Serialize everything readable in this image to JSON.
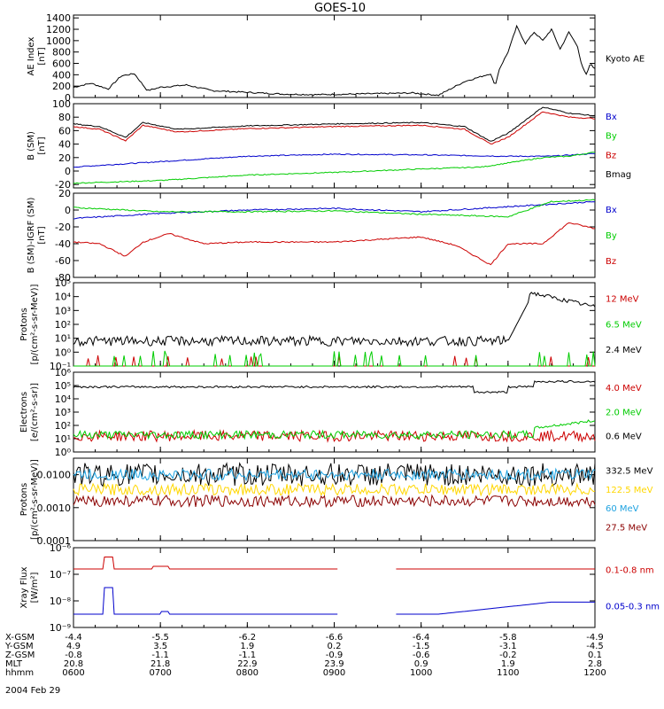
{
  "title": "GOES-10",
  "chart_data": [
    {
      "type": "line",
      "panel": "ae",
      "ylabel": [
        "AE Index",
        "[nT]"
      ],
      "yticks": [
        "0",
        "200",
        "400",
        "600",
        "800",
        "1000",
        "1200",
        "1400"
      ],
      "ylim": [
        0,
        1450
      ],
      "series": [
        {
          "name": "Kyoto AE",
          "color": "#000000",
          "x": [
            0,
            0.2,
            0.4,
            0.55,
            0.7,
            0.85,
            1.0,
            1.3,
            1.6,
            2.0,
            2.4,
            2.8,
            3.2,
            3.6,
            3.9,
            4.2,
            4.5,
            4.8,
            4.85,
            4.9,
            5.0,
            5.1,
            5.2,
            5.3,
            5.4,
            5.5,
            5.6,
            5.7,
            5.8,
            5.85,
            5.9,
            5.95,
            6.0
          ],
          "y": [
            180,
            250,
            150,
            380,
            420,
            120,
            180,
            220,
            120,
            90,
            60,
            50,
            60,
            70,
            80,
            40,
            280,
            420,
            200,
            500,
            800,
            1250,
            950,
            1150,
            1000,
            1200,
            850,
            1150,
            900,
            550,
            400,
            600,
            500
          ]
        }
      ]
    },
    {
      "type": "line",
      "panel": "b-gsm",
      "ylabel": [
        "B (SM)",
        "[nT]"
      ],
      "yticks": [
        "-20",
        "0",
        "20",
        "40",
        "60",
        "80",
        "100"
      ],
      "ylim": [
        -25,
        100
      ],
      "series": [
        {
          "name": "Bx",
          "color": "#0000cc",
          "x": [
            0,
            1,
            2,
            3,
            4,
            5,
            5.5,
            6
          ],
          "y": [
            6,
            14,
            22,
            25,
            24,
            22,
            22,
            26
          ]
        },
        {
          "name": "By",
          "color": "#00cc00",
          "x": [
            0,
            1,
            2,
            3,
            4,
            4.7,
            5,
            5.4,
            5.7,
            6
          ],
          "y": [
            -18,
            -14,
            -6,
            -2,
            3,
            6,
            12,
            20,
            22,
            28
          ]
        },
        {
          "name": "Bz",
          "color": "#cc0000",
          "x": [
            0,
            0.3,
            0.6,
            0.8,
            1.2,
            2,
            3,
            4,
            4.5,
            4.8,
            5,
            5.4,
            5.7,
            6
          ],
          "y": [
            66,
            62,
            45,
            68,
            58,
            63,
            66,
            68,
            62,
            40,
            50,
            88,
            80,
            78
          ]
        },
        {
          "name": "Bmag",
          "color": "#000000",
          "x": [
            0,
            0.3,
            0.6,
            0.8,
            1.2,
            2,
            3,
            4,
            4.5,
            4.8,
            5,
            5.4,
            5.7,
            6
          ],
          "y": [
            70,
            66,
            50,
            72,
            62,
            67,
            70,
            72,
            66,
            44,
            56,
            95,
            86,
            82
          ]
        }
      ]
    },
    {
      "type": "line",
      "panel": "b-igrf",
      "ylabel": [
        "B (SM)-IGRF (SM)",
        "[nT]"
      ],
      "yticks": [
        "-80",
        "-60",
        "-40",
        "-20",
        "0",
        "20"
      ],
      "ylim": [
        -80,
        20
      ],
      "series": [
        {
          "name": "Bx",
          "color": "#0000cc",
          "x": [
            0,
            1,
            2,
            3,
            4,
            5,
            6
          ],
          "y": [
            -10,
            -4,
            0,
            2,
            -2,
            4,
            10
          ]
        },
        {
          "name": "By",
          "color": "#00cc00",
          "x": [
            0,
            1,
            2,
            3,
            4,
            5,
            5.5,
            6
          ],
          "y": [
            3,
            -2,
            -2,
            -1,
            -5,
            -8,
            10,
            12
          ]
        },
        {
          "name": "Bz",
          "color": "#cc0000",
          "x": [
            0,
            0.3,
            0.6,
            0.8,
            1.1,
            1.5,
            2,
            3,
            4,
            4.4,
            4.8,
            5,
            5.4,
            5.7,
            6
          ],
          "y": [
            -38,
            -40,
            -55,
            -38,
            -28,
            -40,
            -38,
            -38,
            -32,
            -42,
            -65,
            -40,
            -40,
            -15,
            -22
          ]
        }
      ]
    },
    {
      "type": "line",
      "panel": "protons-epead",
      "ylabel": [
        "Protons",
        "[p/(cm²-s-sr-MeV)]"
      ],
      "yticks": [
        "10⁻¹",
        "10⁰",
        "10¹",
        "10²",
        "10³",
        "10⁴",
        "10⁵"
      ],
      "ylim_log10": [
        -1,
        5
      ],
      "series": [
        {
          "name": "12 MeV",
          "color": "#cc0000",
          "x": [],
          "y": []
        },
        {
          "name": "6.5 MeV",
          "color": "#00cc00",
          "x": [],
          "y": []
        },
        {
          "name": "2.4 MeV",
          "color": "#000000",
          "x": [],
          "y": []
        }
      ]
    },
    {
      "type": "line",
      "panel": "electrons",
      "ylabel": [
        "Electrons",
        "[e/(cm²-s-sr)]"
      ],
      "yticks": [
        "10⁰",
        "10¹",
        "10²",
        "10³",
        "10⁴",
        "10⁵",
        "10⁶"
      ],
      "ylim_log10": [
        0,
        6
      ],
      "series": [
        {
          "name": "4.0 MeV",
          "color": "#cc0000",
          "x": [],
          "y": []
        },
        {
          "name": "2.0 MeV",
          "color": "#00cc00",
          "x": [],
          "y": []
        },
        {
          "name": "0.6 MeV",
          "color": "#000000",
          "x": [],
          "y": []
        }
      ]
    },
    {
      "type": "line",
      "panel": "protons-hepad",
      "ylabel": [
        "Protons",
        "[p/(cm²-s-sr-MeV)]"
      ],
      "yticks": [
        "0.0001",
        "0.0010",
        "0.0100"
      ],
      "ylim_log10": [
        -4,
        -1.5
      ],
      "series": [
        {
          "name": "332.5 MeV",
          "color": "#000000",
          "x": [],
          "y": []
        },
        {
          "name": "122.5 MeV",
          "color": "#ffd700",
          "x": [],
          "y": []
        },
        {
          "name": "60 MeV",
          "color": "#1fa2e0",
          "x": [],
          "y": []
        },
        {
          "name": "27.5 MeV",
          "color": "#8b0000",
          "x": [],
          "y": []
        }
      ]
    },
    {
      "type": "line",
      "panel": "xray",
      "ylabel": [
        "Xray Flux",
        "[W/m²]"
      ],
      "yticks": [
        "10⁻⁹",
        "10⁻⁸",
        "10⁻⁷",
        "10⁻⁶"
      ],
      "ylim_log10": [
        -9,
        -6
      ],
      "series": [
        {
          "name": "0.1-0.8 nm",
          "color": "#cc0000",
          "x": [],
          "y": []
        },
        {
          "name": "0.05-0.3 nm",
          "color": "#0000cc",
          "x": [],
          "y": []
        }
      ]
    }
  ],
  "x_axis": {
    "range_hours": [
      0,
      6
    ],
    "rows": [
      {
        "label": "X-GSM",
        "values": [
          "-4.4",
          "-5.5",
          "-6.2",
          "-6.6",
          "-6.4",
          "-5.8",
          "-4.9"
        ]
      },
      {
        "label": "Y-GSM",
        "values": [
          "4.9",
          "3.5",
          "1.9",
          "0.2",
          "-1.5",
          "-3.1",
          "-4.5"
        ]
      },
      {
        "label": "Z-GSM",
        "values": [
          "-0.8",
          "-1.1",
          "-1.1",
          "-0.9",
          "-0.6",
          "-0.2",
          "0.1"
        ]
      },
      {
        "label": "MLT",
        "values": [
          "20.8",
          "21.8",
          "22.9",
          "23.9",
          "0.9",
          "1.9",
          "2.8"
        ]
      },
      {
        "label": "hhmm",
        "values": [
          "0600",
          "0700",
          "0800",
          "0900",
          "1000",
          "1100",
          "1200"
        ]
      }
    ],
    "date": "2004 Feb 29"
  }
}
